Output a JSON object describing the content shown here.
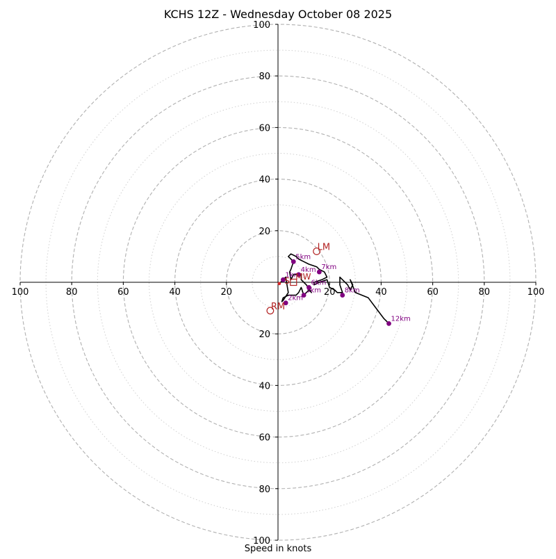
{
  "chart_data": {
    "type": "hodograph",
    "title": "KCHS 12Z - Wednesday October 08 2025",
    "xlabel": "Speed in knots",
    "range": [
      -100,
      100
    ],
    "ring_major": [
      20,
      40,
      60,
      80,
      100
    ],
    "ring_minor": [
      10,
      30,
      50,
      70,
      90
    ],
    "tick_values": [
      20,
      40,
      60,
      80,
      100
    ],
    "tick_labels": [
      "20",
      "40",
      "60",
      "80",
      "100"
    ],
    "colors": {
      "trace": "#000000",
      "marker": "#800080",
      "motion": "#b22222",
      "grid": "#b0b0b0",
      "axis": "#000000"
    },
    "trace": [
      [
        0.5,
        -0.5
      ],
      [
        2,
        1
      ],
      [
        3,
        2
      ],
      [
        4,
        -4
      ],
      [
        2,
        -7
      ],
      [
        1.5,
        -7.5
      ],
      [
        2,
        -6
      ],
      [
        4,
        -5
      ],
      [
        7,
        -5
      ],
      [
        8,
        -4
      ],
      [
        9,
        -2
      ],
      [
        10,
        -5
      ],
      [
        12,
        -3
      ],
      [
        13,
        -4
      ],
      [
        11,
        -1
      ],
      [
        9,
        1
      ],
      [
        9,
        3
      ],
      [
        6,
        3
      ],
      [
        5,
        1
      ],
      [
        4.5,
        4
      ],
      [
        5,
        5
      ],
      [
        6,
        8
      ],
      [
        5,
        9
      ],
      [
        4,
        10
      ],
      [
        5,
        11
      ],
      [
        7,
        10
      ],
      [
        8,
        9
      ],
      [
        10,
        8
      ],
      [
        12,
        7
      ],
      [
        15,
        6
      ],
      [
        16,
        5
      ],
      [
        18,
        4
      ],
      [
        19,
        2
      ],
      [
        17,
        1
      ],
      [
        14,
        0
      ],
      [
        14,
        -1
      ],
      [
        16,
        0
      ],
      [
        19,
        1
      ],
      [
        20,
        -2
      ],
      [
        22,
        -3
      ],
      [
        23,
        -4
      ],
      [
        25,
        -4
      ],
      [
        24,
        -1
      ],
      [
        24,
        2
      ],
      [
        27,
        -1
      ],
      [
        28,
        -3
      ],
      [
        29,
        -1
      ],
      [
        28,
        1
      ],
      [
        30,
        -4
      ],
      [
        35,
        -6
      ],
      [
        38,
        -10
      ],
      [
        41,
        -14
      ],
      [
        42,
        -15
      ],
      [
        43,
        -16
      ]
    ],
    "levels": [
      {
        "label": "1km",
        "x": 2,
        "y": 1
      },
      {
        "label": "2km",
        "x": 3,
        "y": -8
      },
      {
        "label": "3km",
        "x": 10,
        "y": -5
      },
      {
        "label": "4km",
        "x": 8,
        "y": 3
      },
      {
        "label": "5km",
        "x": 6,
        "y": 8
      },
      {
        "label": "6km",
        "x": 12,
        "y": -2
      },
      {
        "label": "7km",
        "x": 16,
        "y": 4
      },
      {
        "label": "8km",
        "x": 25,
        "y": -5
      },
      {
        "label": "12km",
        "x": 43,
        "y": -16
      }
    ],
    "storm_motion": [
      {
        "label": "LM",
        "x": 15,
        "y": 12
      },
      {
        "label": "RM",
        "x": -3,
        "y": -11
      },
      {
        "label": "MW",
        "x": 6,
        "y": 0
      }
    ],
    "other_markers": [
      {
        "label": "S",
        "x": 6,
        "y": 0
      }
    ]
  }
}
